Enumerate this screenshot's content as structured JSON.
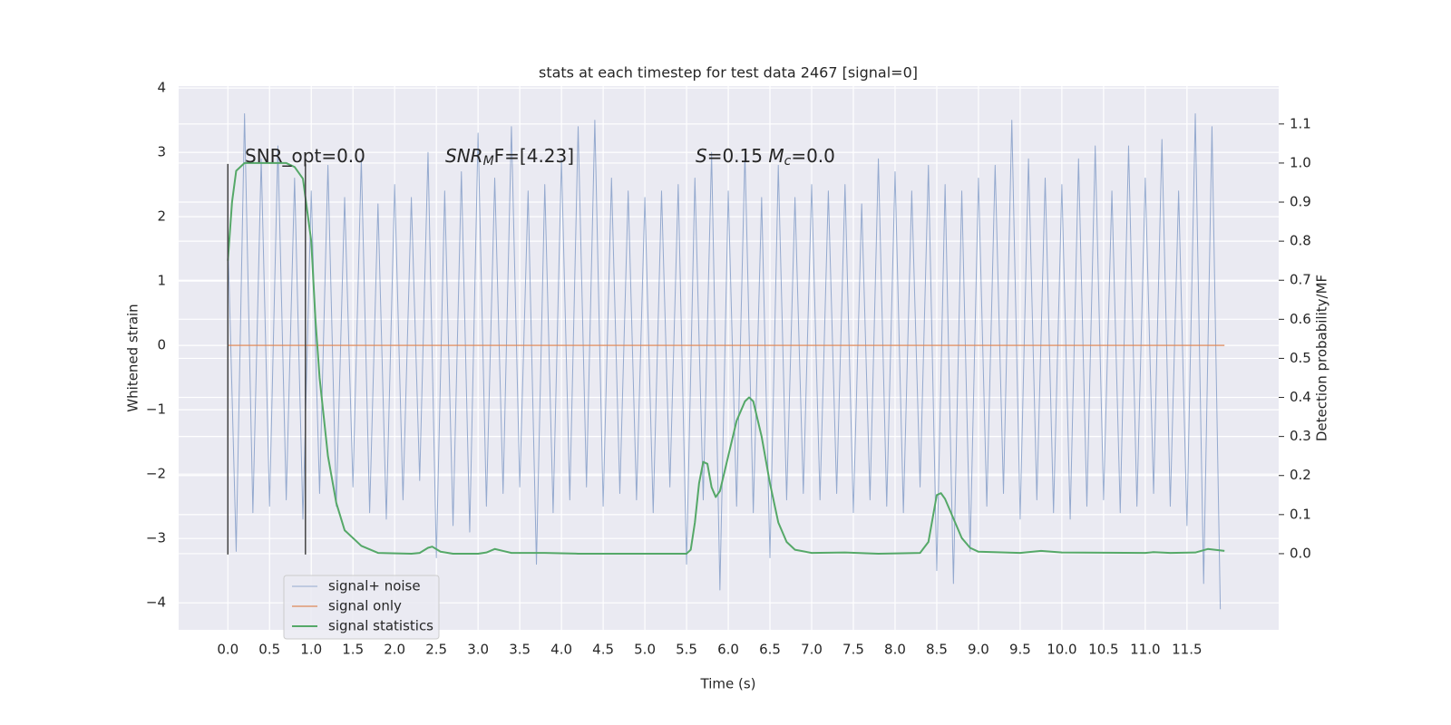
{
  "chart_data": {
    "type": "line",
    "title": "stats at each timestep for test data 2467 [signal=0]",
    "xlabel": "Time (s)",
    "ylabel": "Whitened strain",
    "y2label": "Detection probability/MF",
    "xlim": [
      -0.59,
      12.6
    ],
    "ylim": [
      -4.42,
      4.03
    ],
    "y2lim": [
      -0.195,
      1.197
    ],
    "xticks": [
      {
        "value": 0,
        "label": "0.0"
      },
      0.5,
      {
        "value": 1,
        "label": "1.0"
      },
      1.5,
      {
        "value": 2,
        "label": "2.0"
      },
      2.5,
      {
        "value": 3,
        "label": "3.0"
      },
      3.5,
      {
        "value": 4,
        "label": "4.0"
      },
      4.5,
      {
        "value": 5,
        "label": "5.0"
      },
      5.5,
      {
        "value": 6,
        "label": "6.0"
      },
      6.5,
      {
        "value": 7,
        "label": "7.0"
      },
      7.5,
      {
        "value": 8,
        "label": "8.0"
      },
      8.5,
      {
        "value": 9,
        "label": "9.0"
      },
      9.5,
      {
        "value": 10,
        "label": "10.0"
      },
      10.5,
      {
        "value": 11,
        "label": "11.0"
      },
      11.5
    ],
    "yticks": [
      {
        "value": -4,
        "label": "−4"
      },
      {
        "value": -3,
        "label": "−3"
      },
      {
        "value": -2,
        "label": "−2"
      },
      {
        "value": -1,
        "label": "−1"
      },
      0,
      1,
      2,
      3,
      4
    ],
    "y2ticks": [
      {
        "value": 0,
        "label": "0.0"
      },
      0.1,
      0.2,
      0.3,
      0.4,
      0.5,
      0.6,
      0.7,
      0.8,
      0.9,
      {
        "value": 1,
        "label": "1.0"
      },
      1.1
    ],
    "grid": true,
    "legend": "lower left",
    "series": [
      {
        "name": "signal+ noise",
        "color": "#4c72b0",
        "x": [
          0,
          0.1,
          0.2,
          0.3,
          0.4,
          0.5,
          0.6,
          0.7,
          0.8,
          0.9,
          1,
          1.1,
          1.2,
          1.3,
          1.4,
          1.5,
          1.6,
          1.7,
          1.8,
          1.9,
          2,
          2.1,
          2.2,
          2.3,
          2.4,
          2.5,
          2.6,
          2.7,
          2.8,
          2.9,
          3,
          3.1,
          3.2,
          3.3,
          3.4,
          3.5,
          3.6,
          3.7,
          3.8,
          3.9,
          4,
          4.1,
          4.2,
          4.3,
          4.4,
          4.5,
          4.6,
          4.7,
          4.8,
          4.9,
          5,
          5.1,
          5.2,
          5.3,
          5.4,
          5.5,
          5.6,
          5.7,
          5.8,
          5.9,
          6,
          6.1,
          6.2,
          6.3,
          6.4,
          6.5,
          6.6,
          6.7,
          6.8,
          6.9,
          7,
          7.1,
          7.2,
          7.3,
          7.4,
          7.5,
          7.6,
          7.7,
          7.8,
          7.9,
          8,
          8.1,
          8.2,
          8.3,
          8.4,
          8.5,
          8.6,
          8.7,
          8.8,
          8.9,
          9,
          9.1,
          9.2,
          9.3,
          9.4,
          9.5,
          9.6,
          9.7,
          9.8,
          9.9,
          10,
          10.1,
          10.2,
          10.3,
          10.4,
          10.5,
          10.6,
          10.7,
          10.8,
          10.9,
          11,
          11.1,
          11.2,
          11.3,
          11.4,
          11.5,
          11.6,
          11.7,
          11.8,
          11.9
        ],
        "values": [
          1.7,
          -3.2,
          3.6,
          -2.6,
          2.9,
          -2.5,
          3.1,
          -2.4,
          2.6,
          -2.7,
          2.4,
          -2.3,
          2.8,
          -2.5,
          2.3,
          -2.2,
          2.9,
          -2.6,
          2.2,
          -2.7,
          2.5,
          -2.4,
          2.3,
          -2.1,
          3.0,
          -3.3,
          2.4,
          -2.8,
          2.7,
          -2.9,
          3.3,
          -2.5,
          2.6,
          -2.3,
          3.4,
          -2.2,
          2.4,
          -3.4,
          2.5,
          -2.6,
          2.9,
          -2.4,
          3.4,
          -2.2,
          3.5,
          -2.5,
          2.6,
          -2.3,
          2.4,
          -2.4,
          2.3,
          -2.6,
          2.4,
          -2.2,
          2.5,
          -3.4,
          2.6,
          -2.4,
          3.0,
          -3.8,
          2.4,
          -2.5,
          3.0,
          -2.6,
          2.3,
          -3.3,
          2.8,
          -2.4,
          2.3,
          -2.3,
          2.5,
          -2.4,
          2.4,
          -2.3,
          2.5,
          -2.6,
          2.2,
          -2.4,
          2.9,
          -2.5,
          2.7,
          -2.6,
          2.4,
          -2.2,
          2.8,
          -3.5,
          2.5,
          -3.7,
          2.4,
          -3.2,
          2.6,
          -2.5,
          2.8,
          -2.3,
          3.5,
          -2.7,
          2.9,
          -2.4,
          2.6,
          -2.6,
          2.5,
          -2.7,
          2.9,
          -2.5,
          3.1,
          -2.4,
          2.4,
          -2.6,
          3.1,
          -2.5,
          2.6,
          -2.3,
          3.2,
          -2.5,
          2.4,
          -2.8,
          3.6,
          -3.7,
          3.4,
          -4.1
        ]
      },
      {
        "name": "signal only",
        "color": "#dd8452",
        "x": [
          0,
          11.95
        ],
        "values": [
          0,
          0
        ]
      },
      {
        "name": "signal statistics",
        "color": "#55a868",
        "axis": "y2",
        "x": [
          0,
          0.05,
          0.1,
          0.2,
          0.7,
          0.8,
          0.9,
          1,
          1.05,
          1.1,
          1.2,
          1.3,
          1.4,
          1.6,
          1.8,
          2.2,
          2.3,
          2.4,
          2.45,
          2.55,
          2.7,
          3,
          3.1,
          3.2,
          3.3,
          3.4,
          3.8,
          4.2,
          5.5,
          5.55,
          5.6,
          5.65,
          5.7,
          5.75,
          5.8,
          5.85,
          5.9,
          6,
          6.1,
          6.2,
          6.25,
          6.3,
          6.4,
          6.5,
          6.6,
          6.7,
          6.8,
          7,
          7.4,
          7.8,
          8.3,
          8.4,
          8.5,
          8.55,
          8.6,
          8.7,
          8.8,
          8.9,
          9,
          9.5,
          9.75,
          10,
          11,
          11.1,
          11.3,
          11.6,
          11.75,
          11.95
        ],
        "values": [
          0.75,
          0.9,
          0.98,
          1.0,
          1.0,
          0.99,
          0.96,
          0.8,
          0.6,
          0.45,
          0.25,
          0.13,
          0.06,
          0.02,
          0.002,
          0,
          0.002,
          0.015,
          0.018,
          0.005,
          0,
          0,
          0.003,
          0.012,
          0.007,
          0.002,
          0.002,
          0,
          0,
          0.01,
          0.08,
          0.18,
          0.235,
          0.23,
          0.17,
          0.145,
          0.16,
          0.25,
          0.34,
          0.39,
          0.4,
          0.39,
          0.3,
          0.18,
          0.08,
          0.03,
          0.01,
          0.002,
          0.003,
          0,
          0.002,
          0.03,
          0.15,
          0.155,
          0.14,
          0.09,
          0.04,
          0.015,
          0.005,
          0.002,
          0.007,
          0.003,
          0.002,
          0.004,
          0.002,
          0.003,
          0.012,
          0.007
        ]
      }
    ],
    "vlines": [
      {
        "x": 0,
        "ymin": -3.25,
        "ymax": 2.82
      },
      {
        "x": 0.93,
        "ymin": -3.25,
        "ymax": 2.82
      }
    ],
    "annotations": [
      [
        "SNR_opt=0.0"
      ],
      [
        "SNR",
        "M",
        "F=[4.23]"
      ],
      [
        "S",
        "=0.15   ",
        "M",
        "c",
        "=0.0"
      ]
    ]
  }
}
